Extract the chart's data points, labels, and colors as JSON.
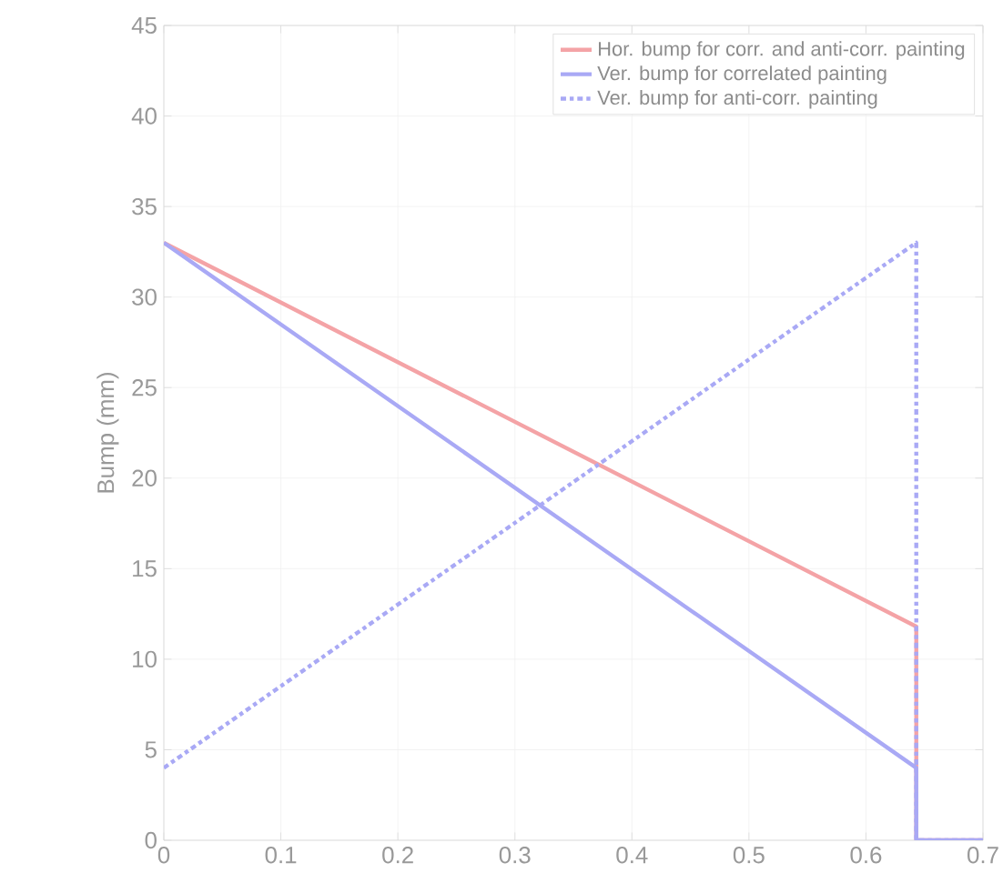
{
  "chart_data": {
    "type": "line",
    "ylabel": "Bump (mm)",
    "xlim": [
      0,
      0.7
    ],
    "ylim": [
      0,
      45
    ],
    "xticks": [
      0,
      0.1,
      0.2,
      0.3,
      0.4,
      0.5,
      0.6,
      0.7
    ],
    "yticks": [
      0,
      5,
      10,
      15,
      20,
      25,
      30,
      35,
      40,
      45
    ],
    "grid": true,
    "legend": "top right",
    "series": [
      {
        "name": "Hor. bump for corr. and anti-corr. painting",
        "color": "#f4a3a6",
        "line_style": "solid",
        "x": [
          0,
          0.643,
          0.643,
          0.7
        ],
        "values": [
          33,
          11.8,
          0,
          0
        ]
      },
      {
        "name": "Ver. bump for correlated painting",
        "color": "#a9a9f5",
        "line_style": "solid",
        "x": [
          0,
          0.643,
          0.643,
          0.7
        ],
        "values": [
          33,
          4,
          0,
          0
        ]
      },
      {
        "name": "Ver. bump for anti-corr. painting",
        "color": "#a9a9f5",
        "line_style": "dashdot",
        "x": [
          0,
          0.643,
          0.643,
          0.7
        ],
        "values": [
          4,
          33,
          0,
          0
        ]
      }
    ]
  }
}
